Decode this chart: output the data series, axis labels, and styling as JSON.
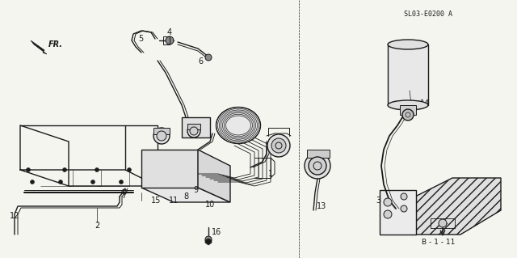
{
  "bg_color": "#f5f5f0",
  "line_color": "#1a1a1a",
  "fig_width": 6.4,
  "fig_height": 3.19,
  "dpi": 100,
  "part_code": "SL03-E0200 A",
  "gray": "#888888",
  "light_gray": "#cccccc"
}
